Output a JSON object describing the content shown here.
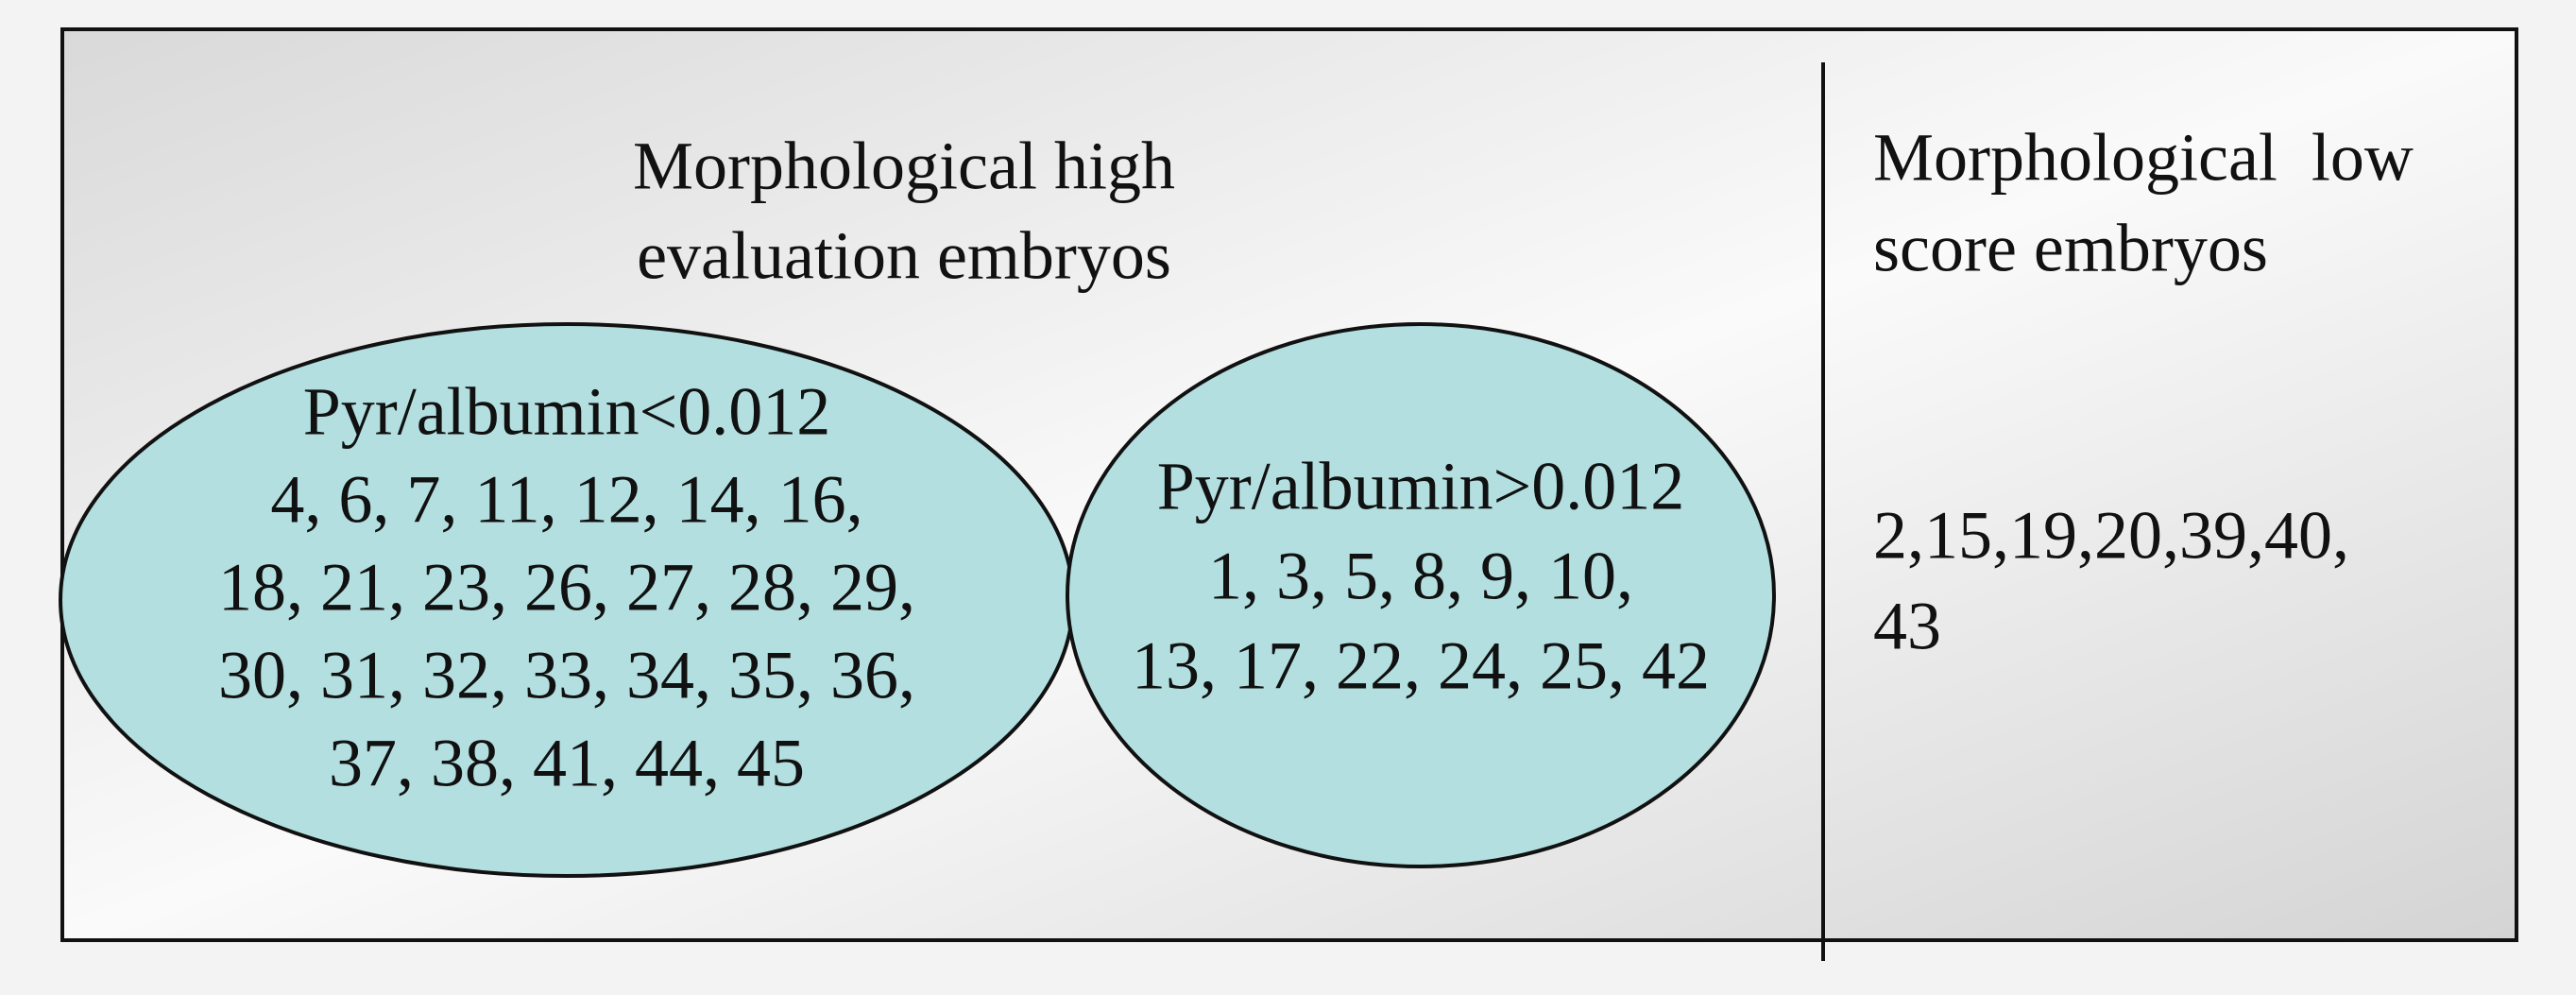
{
  "left": {
    "title": [
      "Morphological high",
      "evaluation embryos"
    ],
    "groups": [
      {
        "label": "Pyr/albumin<0.012",
        "lines": [
          "4, 6, 7, 11, 12, 14, 16,",
          "18, 21, 23, 26, 27, 28, 29,",
          "30, 31, 32, 33, 34, 35, 36,",
          "37, 38, 41, 44, 45"
        ]
      },
      {
        "label": "Pyr/albumin>0.012",
        "lines": [
          "1, 3, 5, 8, 9, 10,",
          "13, 17, 22, 24, 25, 42"
        ]
      }
    ]
  },
  "right": {
    "title": [
      "Morphological  low",
      "score embryos"
    ],
    "lines": [
      "2,15,19,20,39,40,",
      "43"
    ]
  }
}
